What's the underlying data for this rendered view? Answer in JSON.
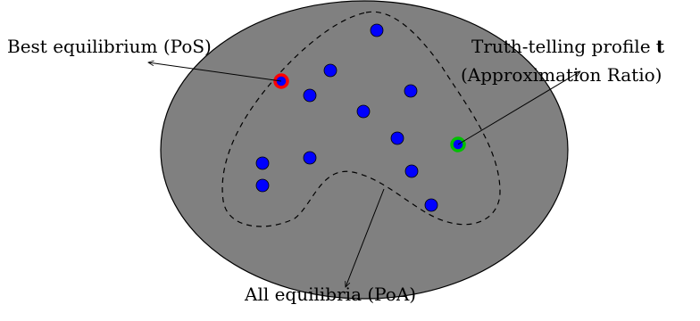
{
  "labels": {
    "best_equilibrium": "Best equilibrium (PoS)",
    "truth_telling_prefix": "Truth-telling profile ",
    "truth_telling_symbol": "t",
    "approximation_ratio": "(Approximation Ratio)",
    "all_equilibria": "All equilibria (PoA)"
  },
  "colors": {
    "outer_fill": "#808080",
    "outcome_dot": "#0000ff",
    "best_equilibrium_ring": "#ff0000",
    "truth_telling_ring": "#00c000",
    "line": "#000000"
  }
}
